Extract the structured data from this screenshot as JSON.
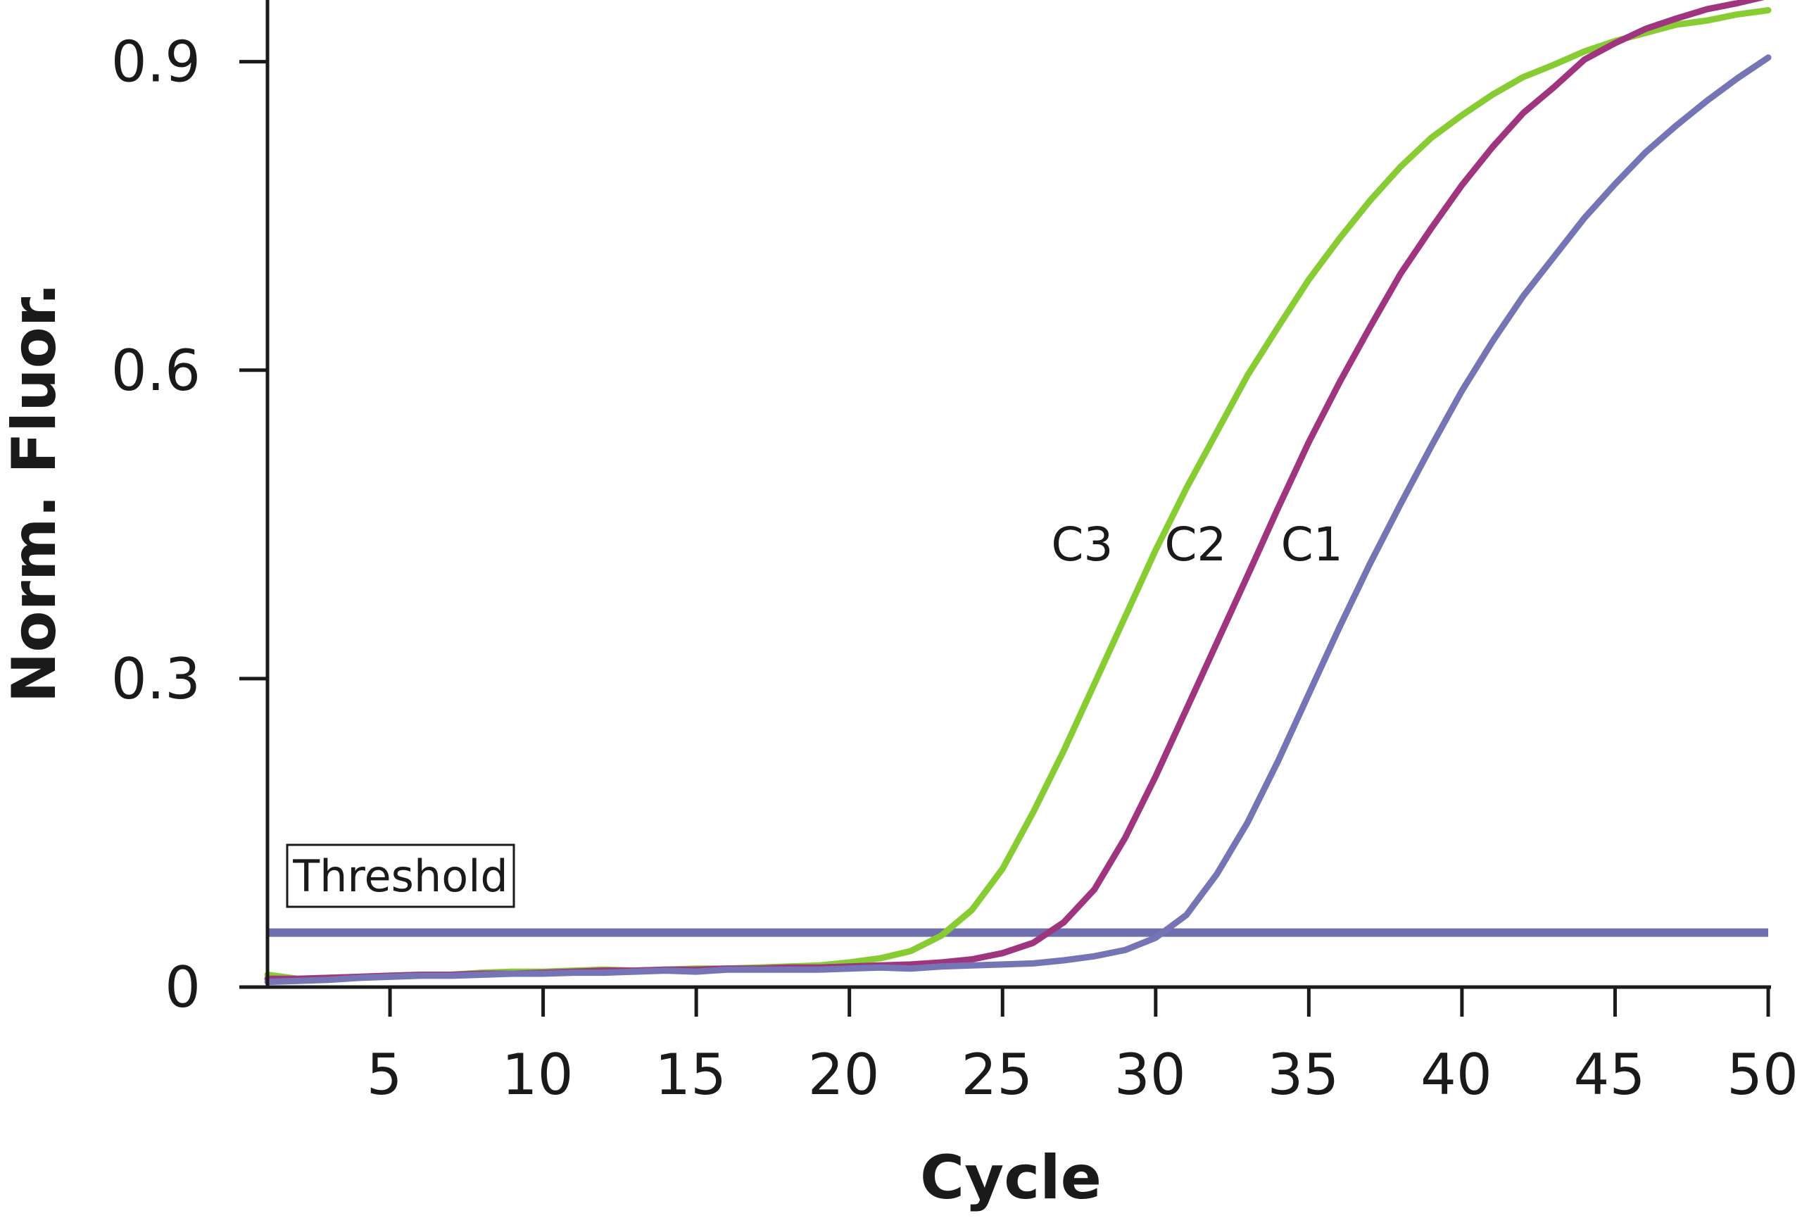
{
  "chart_data": {
    "type": "line",
    "xlabel": "Cycle",
    "ylabel": "Norm. Fluor.",
    "xlim": [
      1,
      50
    ],
    "ylim": [
      0,
      0.96
    ],
    "x_ticks": [
      5,
      10,
      15,
      20,
      25,
      30,
      35,
      40,
      45,
      50
    ],
    "y_ticks": [
      0,
      0.3,
      0.6,
      0.9
    ],
    "y_tick_labels": [
      "0",
      "0.3",
      "0.6",
      "0.9"
    ],
    "threshold": {
      "label": "Threshold",
      "value": 0.053,
      "color": "#6f6fb0"
    },
    "grid": false,
    "series": [
      {
        "name": "C3",
        "color": "#88cc33",
        "x": [
          1,
          2,
          3,
          4,
          5,
          6,
          7,
          8,
          9,
          10,
          11,
          12,
          13,
          14,
          15,
          16,
          17,
          18,
          19,
          20,
          21,
          22,
          23,
          24,
          25,
          26,
          27,
          28,
          29,
          30,
          31,
          32,
          33,
          34,
          35,
          36,
          37,
          38,
          39,
          40,
          41,
          42,
          43,
          44,
          45,
          46,
          47,
          48,
          49,
          50
        ],
        "y": [
          0.012,
          0.008,
          0.009,
          0.01,
          0.011,
          0.012,
          0.012,
          0.014,
          0.015,
          0.015,
          0.016,
          0.017,
          0.016,
          0.017,
          0.018,
          0.018,
          0.019,
          0.02,
          0.021,
          0.024,
          0.028,
          0.035,
          0.05,
          0.075,
          0.115,
          0.17,
          0.23,
          0.295,
          0.36,
          0.425,
          0.485,
          0.54,
          0.595,
          0.642,
          0.688,
          0.728,
          0.765,
          0.798,
          0.826,
          0.848,
          0.868,
          0.885,
          0.897,
          0.91,
          0.92,
          0.928,
          0.936,
          0.94,
          0.946,
          0.95
        ]
      },
      {
        "name": "C2",
        "color": "#a0357f",
        "x": [
          1,
          2,
          3,
          4,
          5,
          6,
          7,
          8,
          9,
          10,
          11,
          12,
          13,
          14,
          15,
          16,
          17,
          18,
          19,
          20,
          21,
          22,
          23,
          24,
          25,
          26,
          27,
          28,
          29,
          30,
          31,
          32,
          33,
          34,
          35,
          36,
          37,
          38,
          39,
          40,
          41,
          42,
          43,
          44,
          45,
          46,
          47,
          48,
          49,
          50
        ],
        "y": [
          0.008,
          0.008,
          0.009,
          0.01,
          0.011,
          0.012,
          0.012,
          0.013,
          0.013,
          0.014,
          0.015,
          0.016,
          0.016,
          0.017,
          0.017,
          0.018,
          0.018,
          0.019,
          0.019,
          0.02,
          0.021,
          0.022,
          0.024,
          0.027,
          0.033,
          0.043,
          0.063,
          0.095,
          0.145,
          0.205,
          0.27,
          0.335,
          0.4,
          0.466,
          0.53,
          0.588,
          0.642,
          0.694,
          0.738,
          0.78,
          0.817,
          0.85,
          0.875,
          0.902,
          0.918,
          0.932,
          0.942,
          0.951,
          0.957,
          0.964
        ]
      },
      {
        "name": "C1",
        "color": "#7575b5",
        "x": [
          1,
          2,
          3,
          4,
          5,
          6,
          7,
          8,
          9,
          10,
          11,
          12,
          13,
          14,
          15,
          16,
          17,
          18,
          19,
          20,
          21,
          22,
          23,
          24,
          25,
          26,
          27,
          28,
          29,
          30,
          31,
          32,
          33,
          34,
          35,
          36,
          37,
          38,
          39,
          40,
          41,
          42,
          43,
          44,
          45,
          46,
          47,
          48,
          49,
          50
        ],
        "y": [
          0.005,
          0.006,
          0.007,
          0.009,
          0.01,
          0.011,
          0.011,
          0.012,
          0.013,
          0.013,
          0.014,
          0.014,
          0.015,
          0.016,
          0.015,
          0.017,
          0.017,
          0.017,
          0.017,
          0.018,
          0.019,
          0.018,
          0.02,
          0.021,
          0.022,
          0.023,
          0.026,
          0.03,
          0.036,
          0.048,
          0.07,
          0.11,
          0.16,
          0.22,
          0.285,
          0.35,
          0.412,
          0.47,
          0.526,
          0.58,
          0.628,
          0.672,
          0.71,
          0.748,
          0.781,
          0.812,
          0.838,
          0.862,
          0.884,
          0.904
        ]
      }
    ],
    "series_labels": [
      {
        "name": "C3",
        "anchor_x": 27.6,
        "anchor_y": 0.415
      },
      {
        "name": "C2",
        "anchor_x": 31.3,
        "anchor_y": 0.415
      },
      {
        "name": "C1",
        "anchor_x": 35.1,
        "anchor_y": 0.415
      }
    ]
  }
}
